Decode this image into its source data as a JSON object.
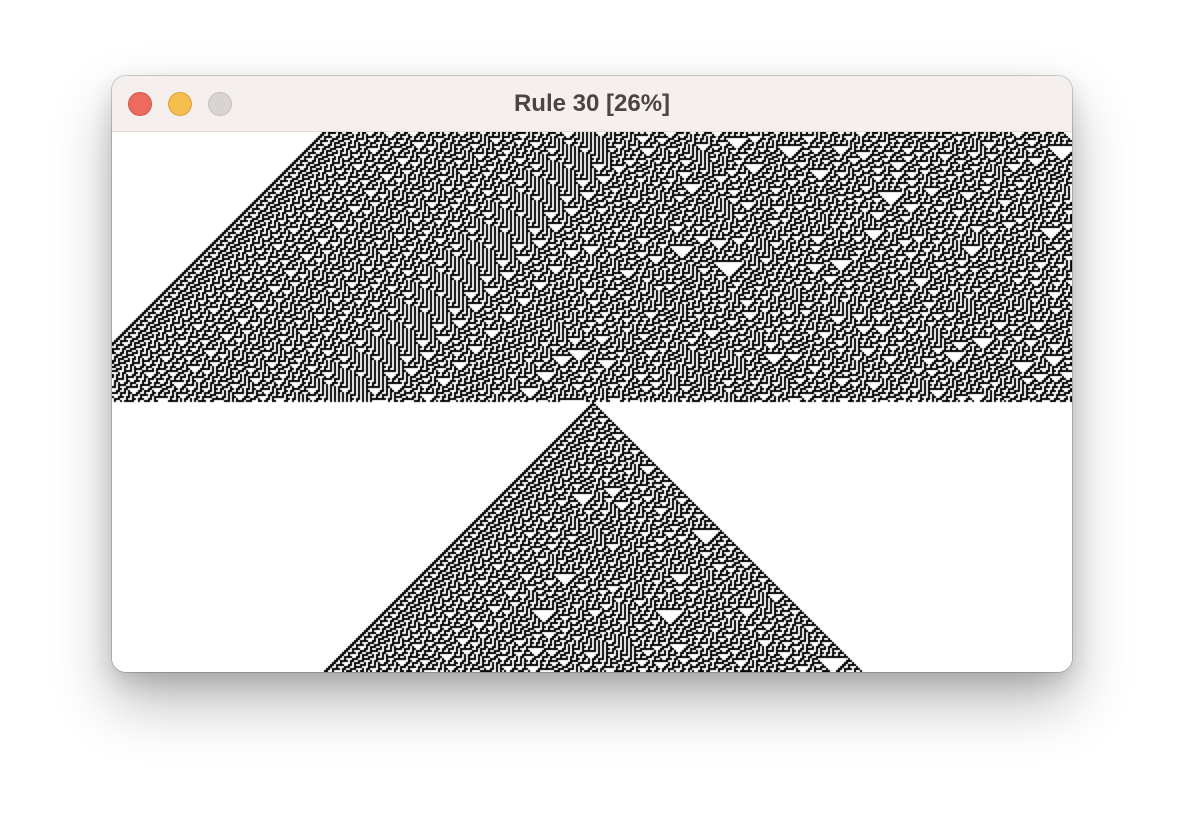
{
  "window": {
    "title": "Rule 30 [26%]",
    "controls": {
      "close_icon": "close-button-red",
      "minimize_icon": "minimize-button-yellow",
      "zoom_icon": "zoom-button-gray"
    }
  },
  "automaton": {
    "rule": 30,
    "progress_percent": 26,
    "colors": {
      "cell_on": "#000000",
      "cell_off": "#ffffff"
    }
  }
}
